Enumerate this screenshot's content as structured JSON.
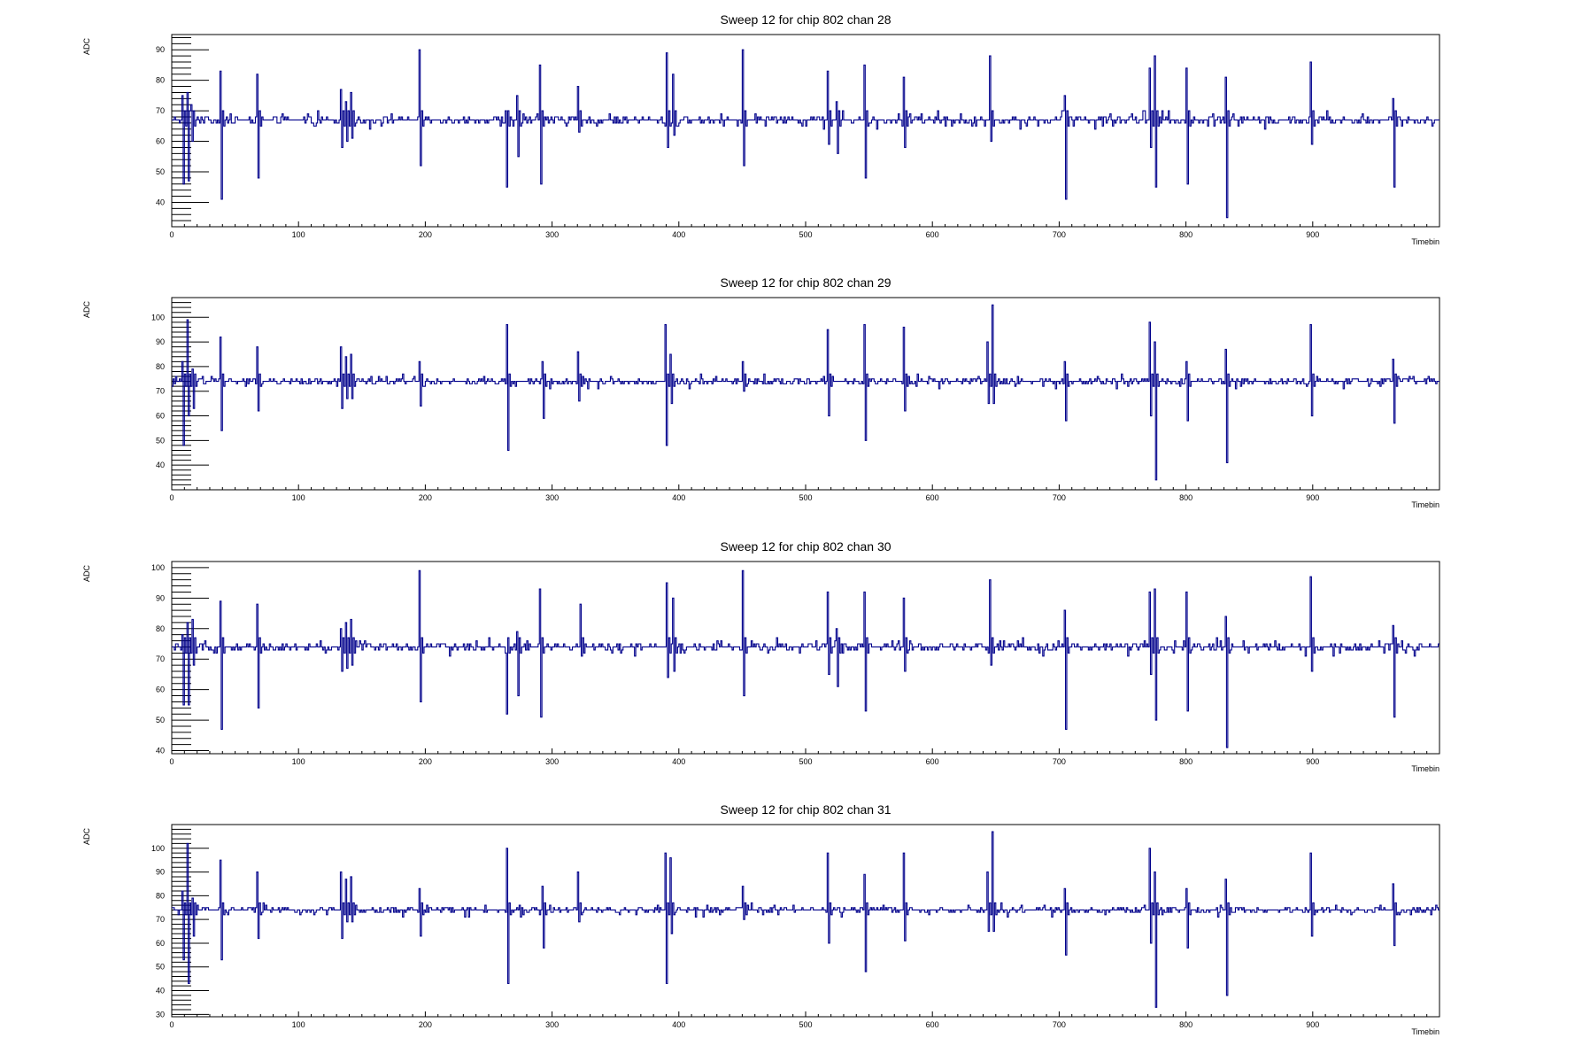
{
  "chart_data": [
    {
      "type": "line",
      "title": "Sweep 12 for chip 802 chan 28",
      "xlabel": "Timebin",
      "ylabel": "ADC",
      "xlim": [
        0,
        1000
      ],
      "ylim": [
        32,
        95
      ],
      "xticks": [
        0,
        100,
        200,
        300,
        400,
        500,
        600,
        700,
        800,
        900
      ],
      "yticks": [
        40,
        50,
        60,
        70,
        80,
        90
      ],
      "baseline": 67,
      "grid": false,
      "color": "#00008b",
      "spikes": [
        {
          "x": 8,
          "hi": 75,
          "lo": 46
        },
        {
          "x": 12,
          "hi": 76,
          "lo": 47
        },
        {
          "x": 15,
          "hi": 72,
          "lo": 60
        },
        {
          "x": 38,
          "hi": 83,
          "lo": 41
        },
        {
          "x": 67,
          "hi": 82,
          "lo": 48
        },
        {
          "x": 133,
          "hi": 77,
          "lo": 58
        },
        {
          "x": 137,
          "hi": 73,
          "lo": 60
        },
        {
          "x": 141,
          "hi": 76,
          "lo": 61
        },
        {
          "x": 195,
          "hi": 90,
          "lo": 52
        },
        {
          "x": 263,
          "hi": 70,
          "lo": 45
        },
        {
          "x": 272,
          "hi": 75,
          "lo": 55
        },
        {
          "x": 290,
          "hi": 85,
          "lo": 46
        },
        {
          "x": 320,
          "hi": 78,
          "lo": 63
        },
        {
          "x": 390,
          "hi": 89,
          "lo": 58
        },
        {
          "x": 395,
          "hi": 82,
          "lo": 62
        },
        {
          "x": 450,
          "hi": 90,
          "lo": 52
        },
        {
          "x": 517,
          "hi": 83,
          "lo": 59
        },
        {
          "x": 524,
          "hi": 73,
          "lo": 56
        },
        {
          "x": 546,
          "hi": 85,
          "lo": 48
        },
        {
          "x": 577,
          "hi": 81,
          "lo": 58
        },
        {
          "x": 645,
          "hi": 88,
          "lo": 60
        },
        {
          "x": 704,
          "hi": 75,
          "lo": 41
        },
        {
          "x": 771,
          "hi": 84,
          "lo": 58
        },
        {
          "x": 775,
          "hi": 88,
          "lo": 45
        },
        {
          "x": 800,
          "hi": 84,
          "lo": 46
        },
        {
          "x": 831,
          "hi": 81,
          "lo": 35
        },
        {
          "x": 898,
          "hi": 86,
          "lo": 59
        },
        {
          "x": 963,
          "hi": 74,
          "lo": 45
        }
      ]
    },
    {
      "type": "line",
      "title": "Sweep 12 for chip 802 chan 29",
      "xlabel": "Timebin",
      "ylabel": "ADC",
      "xlim": [
        0,
        1000
      ],
      "ylim": [
        30,
        108
      ],
      "xticks": [
        0,
        100,
        200,
        300,
        400,
        500,
        600,
        700,
        800,
        900
      ],
      "yticks": [
        40,
        50,
        60,
        70,
        80,
        90,
        100
      ],
      "baseline": 74,
      "grid": false,
      "color": "#00008b",
      "spikes": [
        {
          "x": 8,
          "hi": 82,
          "lo": 48
        },
        {
          "x": 12,
          "hi": 99,
          "lo": 60
        },
        {
          "x": 16,
          "hi": 79,
          "lo": 63
        },
        {
          "x": 38,
          "hi": 92,
          "lo": 54
        },
        {
          "x": 67,
          "hi": 88,
          "lo": 62
        },
        {
          "x": 133,
          "hi": 88,
          "lo": 63
        },
        {
          "x": 137,
          "hi": 84,
          "lo": 67
        },
        {
          "x": 141,
          "hi": 85,
          "lo": 67
        },
        {
          "x": 195,
          "hi": 82,
          "lo": 64
        },
        {
          "x": 264,
          "hi": 97,
          "lo": 46
        },
        {
          "x": 292,
          "hi": 82,
          "lo": 59
        },
        {
          "x": 320,
          "hi": 86,
          "lo": 66
        },
        {
          "x": 389,
          "hi": 97,
          "lo": 48
        },
        {
          "x": 393,
          "hi": 85,
          "lo": 65
        },
        {
          "x": 450,
          "hi": 82,
          "lo": 70
        },
        {
          "x": 517,
          "hi": 95,
          "lo": 60
        },
        {
          "x": 546,
          "hi": 97,
          "lo": 50
        },
        {
          "x": 577,
          "hi": 96,
          "lo": 62
        },
        {
          "x": 643,
          "hi": 90,
          "lo": 65
        },
        {
          "x": 647,
          "hi": 105,
          "lo": 65
        },
        {
          "x": 704,
          "hi": 82,
          "lo": 58
        },
        {
          "x": 771,
          "hi": 98,
          "lo": 60
        },
        {
          "x": 775,
          "hi": 90,
          "lo": 34
        },
        {
          "x": 800,
          "hi": 82,
          "lo": 58
        },
        {
          "x": 831,
          "hi": 87,
          "lo": 41
        },
        {
          "x": 898,
          "hi": 97,
          "lo": 60
        },
        {
          "x": 963,
          "hi": 83,
          "lo": 57
        }
      ]
    },
    {
      "type": "line",
      "title": "Sweep 12 for chip 802 chan 30",
      "xlabel": "Timebin",
      "ylabel": "ADC",
      "xlim": [
        0,
        1000
      ],
      "ylim": [
        39,
        102
      ],
      "xticks": [
        0,
        100,
        200,
        300,
        400,
        500,
        600,
        700,
        800,
        900
      ],
      "yticks": [
        40,
        50,
        60,
        70,
        80,
        90,
        100
      ],
      "baseline": 74,
      "grid": false,
      "color": "#00008b",
      "spikes": [
        {
          "x": 8,
          "hi": 78,
          "lo": 55
        },
        {
          "x": 12,
          "hi": 82,
          "lo": 55
        },
        {
          "x": 16,
          "hi": 83,
          "lo": 68
        },
        {
          "x": 38,
          "hi": 89,
          "lo": 47
        },
        {
          "x": 67,
          "hi": 88,
          "lo": 54
        },
        {
          "x": 133,
          "hi": 80,
          "lo": 66
        },
        {
          "x": 137,
          "hi": 82,
          "lo": 67
        },
        {
          "x": 141,
          "hi": 83,
          "lo": 68
        },
        {
          "x": 195,
          "hi": 99,
          "lo": 56
        },
        {
          "x": 263,
          "hi": 72,
          "lo": 52
        },
        {
          "x": 272,
          "hi": 79,
          "lo": 58
        },
        {
          "x": 290,
          "hi": 93,
          "lo": 51
        },
        {
          "x": 322,
          "hi": 88,
          "lo": 71
        },
        {
          "x": 390,
          "hi": 95,
          "lo": 64
        },
        {
          "x": 395,
          "hi": 90,
          "lo": 66
        },
        {
          "x": 450,
          "hi": 99,
          "lo": 58
        },
        {
          "x": 517,
          "hi": 92,
          "lo": 65
        },
        {
          "x": 524,
          "hi": 80,
          "lo": 61
        },
        {
          "x": 546,
          "hi": 92,
          "lo": 53
        },
        {
          "x": 577,
          "hi": 90,
          "lo": 66
        },
        {
          "x": 645,
          "hi": 96,
          "lo": 68
        },
        {
          "x": 704,
          "hi": 86,
          "lo": 47
        },
        {
          "x": 771,
          "hi": 92,
          "lo": 65
        },
        {
          "x": 775,
          "hi": 93,
          "lo": 50
        },
        {
          "x": 800,
          "hi": 92,
          "lo": 53
        },
        {
          "x": 831,
          "hi": 84,
          "lo": 41
        },
        {
          "x": 898,
          "hi": 97,
          "lo": 66
        },
        {
          "x": 963,
          "hi": 81,
          "lo": 51
        }
      ]
    },
    {
      "type": "line",
      "title": "Sweep 12 for chip 802 chan 31",
      "xlabel": "Timebin",
      "ylabel": "ADC",
      "xlim": [
        0,
        1000
      ],
      "ylim": [
        29,
        110
      ],
      "xticks": [
        0,
        100,
        200,
        300,
        400,
        500,
        600,
        700,
        800,
        900
      ],
      "yticks": [
        30,
        40,
        50,
        60,
        70,
        80,
        90,
        100
      ],
      "baseline": 74,
      "grid": false,
      "color": "#00008b",
      "spikes": [
        {
          "x": 8,
          "hi": 82,
          "lo": 53
        },
        {
          "x": 12,
          "hi": 102,
          "lo": 43
        },
        {
          "x": 16,
          "hi": 79,
          "lo": 63
        },
        {
          "x": 38,
          "hi": 95,
          "lo": 53
        },
        {
          "x": 67,
          "hi": 90,
          "lo": 62
        },
        {
          "x": 133,
          "hi": 90,
          "lo": 62
        },
        {
          "x": 137,
          "hi": 87,
          "lo": 69
        },
        {
          "x": 141,
          "hi": 88,
          "lo": 69
        },
        {
          "x": 195,
          "hi": 83,
          "lo": 63
        },
        {
          "x": 264,
          "hi": 100,
          "lo": 43
        },
        {
          "x": 292,
          "hi": 84,
          "lo": 58
        },
        {
          "x": 320,
          "hi": 90,
          "lo": 69
        },
        {
          "x": 389,
          "hi": 98,
          "lo": 43
        },
        {
          "x": 393,
          "hi": 96,
          "lo": 64
        },
        {
          "x": 450,
          "hi": 84,
          "lo": 70
        },
        {
          "x": 517,
          "hi": 98,
          "lo": 60
        },
        {
          "x": 546,
          "hi": 89,
          "lo": 48
        },
        {
          "x": 577,
          "hi": 98,
          "lo": 61
        },
        {
          "x": 643,
          "hi": 90,
          "lo": 65
        },
        {
          "x": 647,
          "hi": 107,
          "lo": 65
        },
        {
          "x": 704,
          "hi": 83,
          "lo": 55
        },
        {
          "x": 771,
          "hi": 100,
          "lo": 60
        },
        {
          "x": 775,
          "hi": 90,
          "lo": 33
        },
        {
          "x": 800,
          "hi": 83,
          "lo": 58
        },
        {
          "x": 831,
          "hi": 87,
          "lo": 38
        },
        {
          "x": 898,
          "hi": 98,
          "lo": 63
        },
        {
          "x": 963,
          "hi": 85,
          "lo": 59
        }
      ]
    }
  ]
}
